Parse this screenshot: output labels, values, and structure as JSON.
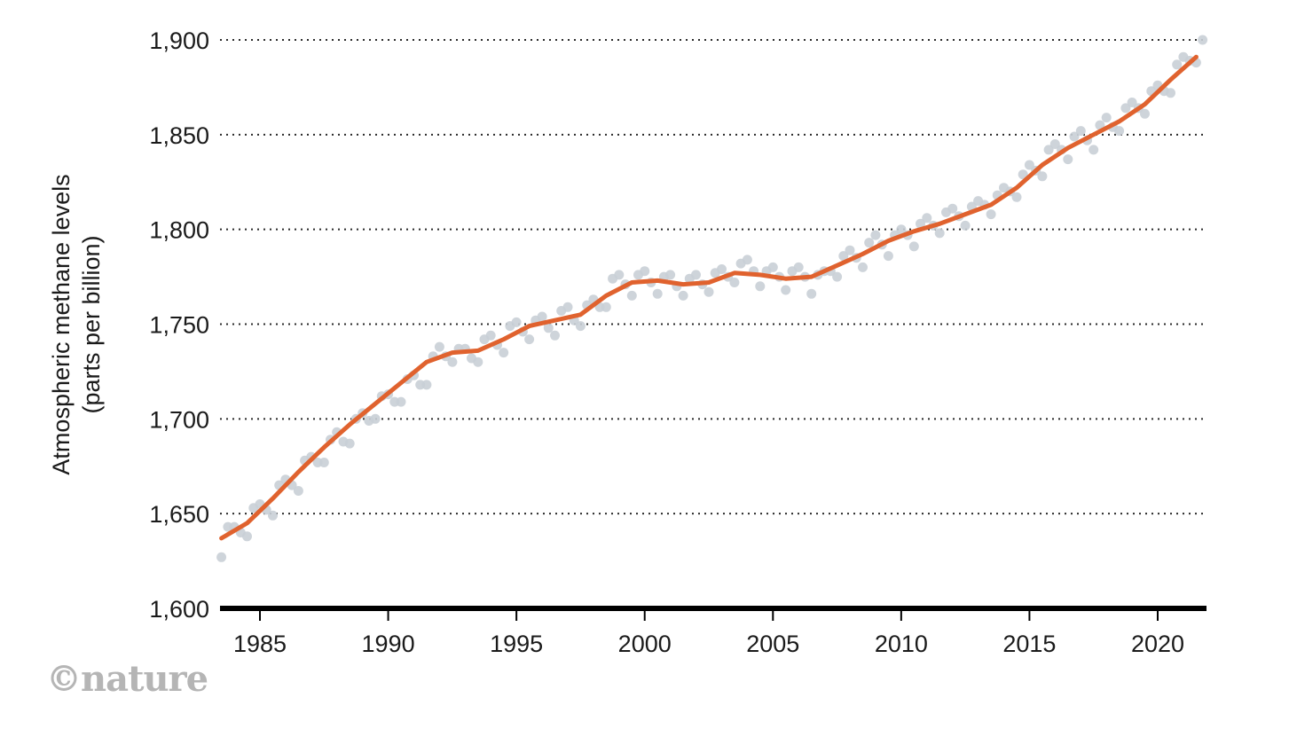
{
  "chart_data": {
    "type": "line",
    "title": "",
    "xlabel": "",
    "ylabel": "Atmospheric methane levels",
    "ylabel_sub": "(parts per billion)",
    "ylim": [
      1600,
      1900
    ],
    "xlim": [
      1983.5,
      2022.0
    ],
    "y_ticks": [
      {
        "value": 1600,
        "label": "1,600"
      },
      {
        "value": 1650,
        "label": "1,650"
      },
      {
        "value": 1700,
        "label": "1,700"
      },
      {
        "value": 1750,
        "label": "1,750"
      },
      {
        "value": 1800,
        "label": "1,800"
      },
      {
        "value": 1850,
        "label": "1,850"
      },
      {
        "value": 1900,
        "label": "1,900"
      }
    ],
    "x_ticks": [
      {
        "value": 1985,
        "label": "1985"
      },
      {
        "value": 1990,
        "label": "1990"
      },
      {
        "value": 1995,
        "label": "1995"
      },
      {
        "value": 2000,
        "label": "2000"
      },
      {
        "value": 2005,
        "label": "2005"
      },
      {
        "value": 2010,
        "label": "2010"
      },
      {
        "value": 2015,
        "label": "2015"
      },
      {
        "value": 2020,
        "label": "2020"
      }
    ],
    "grid": "horizontal-dotted",
    "series": [
      {
        "color": "#e0622e",
        "style": "line",
        "x": [
          1983.5,
          1984.5,
          1985.5,
          1986.5,
          1987.5,
          1988.5,
          1989.5,
          1990.5,
          1991.5,
          1992.5,
          1993.5,
          1994.5,
          1995.5,
          1996.5,
          1997.5,
          1998.5,
          1999.5,
          2000.5,
          2001.5,
          2002.5,
          2003.5,
          2004.5,
          2005.5,
          2006.5,
          2007.5,
          2008.5,
          2009.5,
          2010.5,
          2011.5,
          2012.5,
          2013.5,
          2014.5,
          2015.5,
          2016.5,
          2017.5,
          2018.5,
          2019.5,
          2020.5,
          2021.5
        ],
        "y": [
          1637,
          1645,
          1658,
          1672,
          1685,
          1697,
          1708,
          1719,
          1730,
          1735,
          1736,
          1742,
          1749,
          1752,
          1755,
          1765,
          1772,
          1773,
          1771,
          1772,
          1777,
          1776,
          1774,
          1775,
          1781,
          1787,
          1794,
          1799,
          1803,
          1808,
          1813,
          1822,
          1834,
          1843,
          1850,
          1857,
          1866,
          1879,
          1891
        ]
      },
      {
        "color": "#c9cfd6",
        "style": "points",
        "x": [
          1983.5,
          1983.75,
          1984.0,
          1984.25,
          1984.5,
          1984.75,
          1985.0,
          1985.25,
          1985.5,
          1985.75,
          1986.0,
          1986.25,
          1986.5,
          1986.75,
          1987.0,
          1987.25,
          1987.5,
          1987.75,
          1988.0,
          1988.25,
          1988.5,
          1988.75,
          1989.0,
          1989.25,
          1989.5,
          1989.75,
          1990.0,
          1990.25,
          1990.5,
          1990.75,
          1991.0,
          1991.25,
          1991.5,
          1991.75,
          1992.0,
          1992.25,
          1992.5,
          1992.75,
          1993.0,
          1993.25,
          1993.5,
          1993.75,
          1994.0,
          1994.25,
          1994.5,
          1994.75,
          1995.0,
          1995.25,
          1995.5,
          1995.75,
          1996.0,
          1996.25,
          1996.5,
          1996.75,
          1997.0,
          1997.25,
          1997.5,
          1997.75,
          1998.0,
          1998.25,
          1998.5,
          1998.75,
          1999.0,
          1999.25,
          1999.5,
          1999.75,
          2000.0,
          2000.25,
          2000.5,
          2000.75,
          2001.0,
          2001.25,
          2001.5,
          2001.75,
          2002.0,
          2002.25,
          2002.5,
          2002.75,
          2003.0,
          2003.25,
          2003.5,
          2003.75,
          2004.0,
          2004.25,
          2004.5,
          2004.75,
          2005.0,
          2005.25,
          2005.5,
          2005.75,
          2006.0,
          2006.25,
          2006.5,
          2006.75,
          2007.0,
          2007.25,
          2007.5,
          2007.75,
          2008.0,
          2008.25,
          2008.5,
          2008.75,
          2009.0,
          2009.25,
          2009.5,
          2009.75,
          2010.0,
          2010.25,
          2010.5,
          2010.75,
          2011.0,
          2011.25,
          2011.5,
          2011.75,
          2012.0,
          2012.25,
          2012.5,
          2012.75,
          2013.0,
          2013.25,
          2013.5,
          2013.75,
          2014.0,
          2014.25,
          2014.5,
          2014.75,
          2015.0,
          2015.25,
          2015.5,
          2015.75,
          2016.0,
          2016.25,
          2016.5,
          2016.75,
          2017.0,
          2017.25,
          2017.5,
          2017.75,
          2018.0,
          2018.25,
          2018.5,
          2018.75,
          2019.0,
          2019.25,
          2019.5,
          2019.75,
          2020.0,
          2020.25,
          2020.5,
          2020.75,
          2021.0,
          2021.25,
          2021.5,
          2021.75
        ],
        "y": [
          1627,
          1643,
          1643,
          1640,
          1638,
          1653,
          1655,
          1652,
          1649,
          1665,
          1668,
          1665,
          1662,
          1678,
          1680,
          1677,
          1677,
          1689,
          1693,
          1688,
          1687,
          1700,
          1703,
          1699,
          1700,
          1712,
          1713,
          1709,
          1709,
          1721,
          1723,
          1718,
          1718,
          1733,
          1738,
          1733,
          1730,
          1737,
          1737,
          1732,
          1730,
          1742,
          1744,
          1739,
          1735,
          1749,
          1751,
          1746,
          1742,
          1752,
          1754,
          1748,
          1744,
          1757,
          1759,
          1752,
          1749,
          1760,
          1763,
          1759,
          1759,
          1774,
          1776,
          1771,
          1765,
          1776,
          1778,
          1772,
          1766,
          1775,
          1776,
          1770,
          1765,
          1774,
          1776,
          1771,
          1767,
          1777,
          1779,
          1775,
          1772,
          1782,
          1784,
          1778,
          1770,
          1778,
          1780,
          1775,
          1768,
          1778,
          1780,
          1775,
          1766,
          1776,
          1778,
          1778,
          1775,
          1786,
          1789,
          1785,
          1780,
          1793,
          1797,
          1792,
          1786,
          1797,
          1800,
          1797,
          1791,
          1803,
          1806,
          1802,
          1798,
          1809,
          1811,
          1807,
          1802,
          1812,
          1815,
          1813,
          1808,
          1818,
          1822,
          1820,
          1817,
          1829,
          1834,
          1831,
          1828,
          1842,
          1845,
          1842,
          1837,
          1849,
          1852,
          1847,
          1842,
          1855,
          1859,
          1854,
          1852,
          1864,
          1867,
          1864,
          1861,
          1873,
          1876,
          1873,
          1872,
          1887,
          1891,
          1889,
          1888,
          1900
        ]
      }
    ]
  },
  "branding": {
    "watermark": "©nature"
  }
}
